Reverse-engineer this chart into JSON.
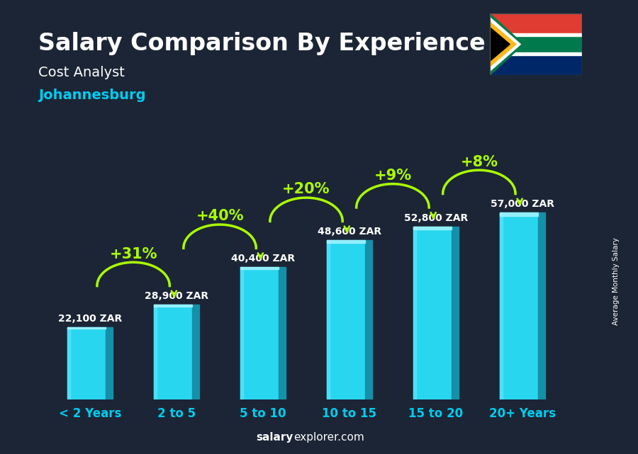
{
  "title": "Salary Comparison By Experience",
  "subtitle1": "Cost Analyst",
  "subtitle2": "Johannesburg",
  "ylabel": "Average Monthly Salary",
  "footer_bold": "salary",
  "footer_normal": "explorer.com",
  "categories": [
    "< 2 Years",
    "2 to 5",
    "5 to 10",
    "10 to 15",
    "15 to 20",
    "20+ Years"
  ],
  "values": [
    22100,
    28900,
    40400,
    48600,
    52800,
    57000
  ],
  "labels": [
    "22,100 ZAR",
    "28,900 ZAR",
    "40,400 ZAR",
    "48,600 ZAR",
    "52,800 ZAR",
    "57,000 ZAR"
  ],
  "pct_labels": [
    "+31%",
    "+40%",
    "+20%",
    "+9%",
    "+8%"
  ],
  "bar_face_color": "#29d6f0",
  "bar_right_color": "#1490a8",
  "bar_left_color": "#5de8ff",
  "bar_top_color": "#aaf5ff",
  "title_color": "#ffffff",
  "subtitle1_color": "#ffffff",
  "subtitle2_color": "#00ccee",
  "label_color": "#ffffff",
  "pct_color": "#aaff00",
  "xticklabel_color": "#00ccee",
  "footer_color": "#ffffff",
  "background_color": "#1c2535",
  "ylim": [
    0,
    72000
  ],
  "bar_width": 0.52,
  "title_fontsize": 24,
  "subtitle_fontsize": 14,
  "label_fontsize": 10,
  "pct_fontsize": 15,
  "xtick_fontsize": 12
}
